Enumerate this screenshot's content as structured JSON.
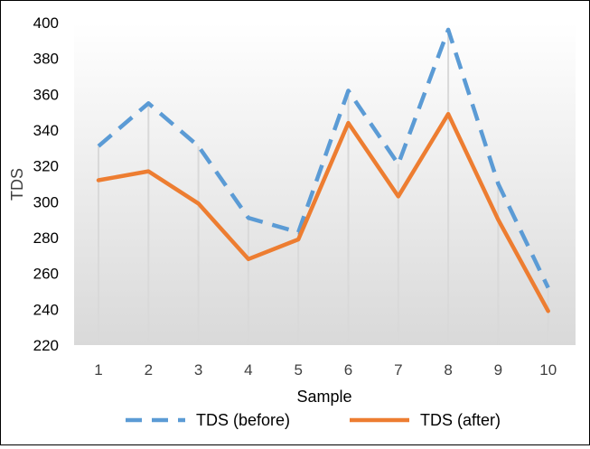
{
  "chart_data": {
    "type": "line",
    "x": [
      1,
      2,
      3,
      4,
      5,
      6,
      7,
      8,
      9,
      10
    ],
    "series": [
      {
        "name": "TDS (before)",
        "values": [
          331,
          355,
          331,
          291,
          283,
          362,
          321,
          396,
          310,
          252
        ],
        "color": "#5B9BD5",
        "style": "dashed"
      },
      {
        "name": "TDS (after)",
        "values": [
          312,
          317,
          299,
          268,
          279,
          344,
          303,
          349,
          290,
          239
        ],
        "color": "#ED7D31",
        "style": "solid"
      }
    ],
    "xlabel": "Sample",
    "ylabel": "TDS",
    "ylim": [
      220,
      400
    ],
    "yticks": [
      220,
      240,
      260,
      280,
      300,
      320,
      340,
      360,
      380,
      400
    ],
    "plot_area_fill": "gradient white to light grey",
    "drop_lines": true,
    "grid": false,
    "legend_position": "bottom"
  }
}
